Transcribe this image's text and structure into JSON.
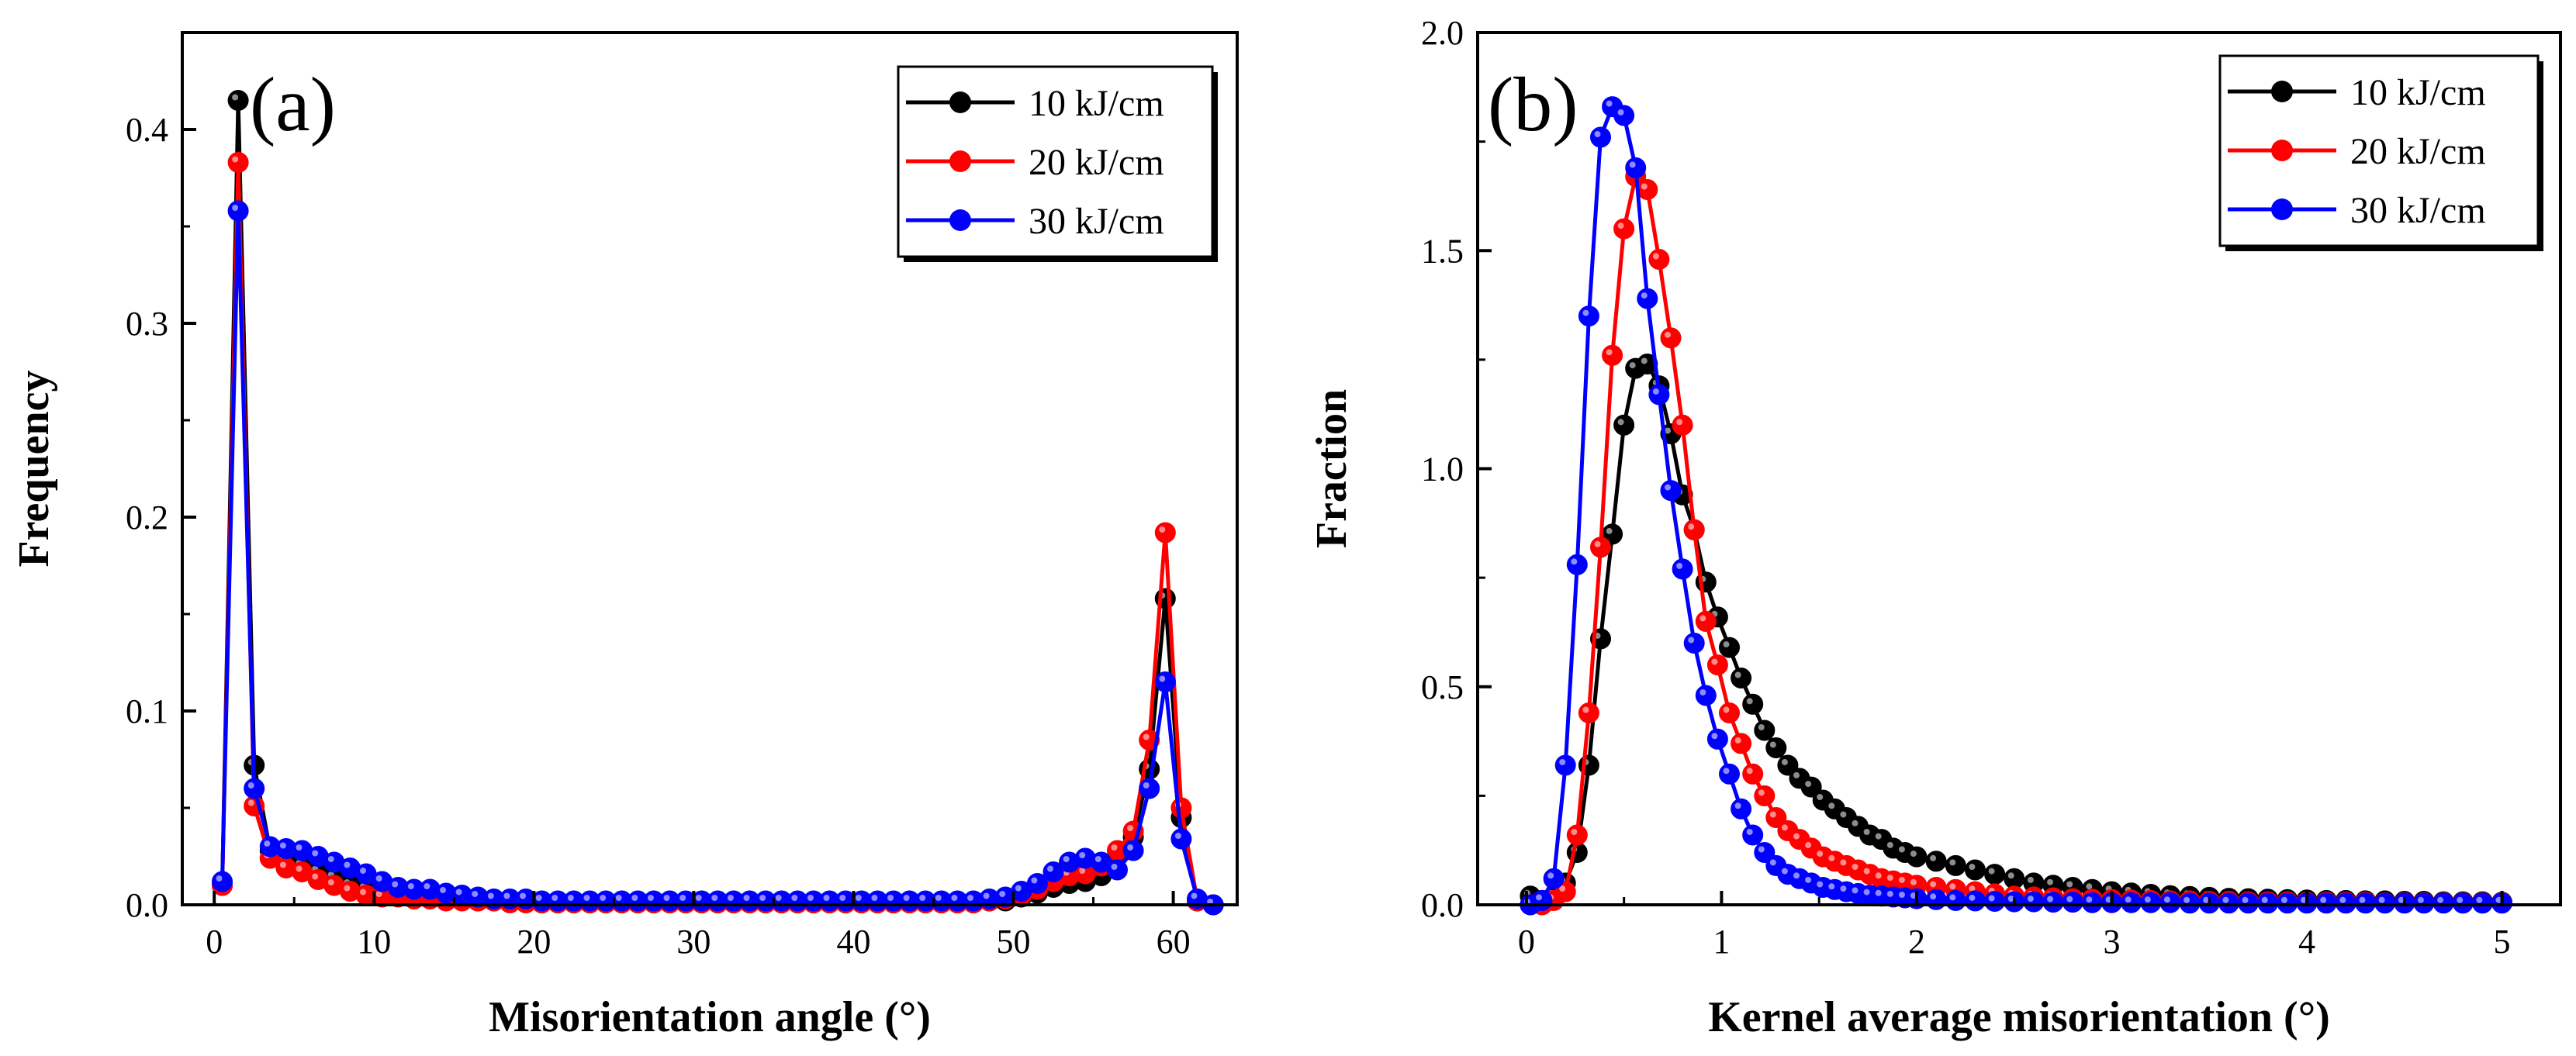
{
  "chart_data": [
    {
      "type": "line",
      "panel_label": "(a)",
      "xlabel": "Misorientation angle (°)",
      "ylabel": "Frequency",
      "xlim": [
        -2,
        64
      ],
      "ylim": [
        0,
        0.45
      ],
      "xticks": [
        0,
        10,
        20,
        30,
        40,
        50,
        60
      ],
      "yticks": [
        0.0,
        0.1,
        0.2,
        0.3,
        0.4
      ],
      "ytick_labels": [
        "0.0",
        "0.1",
        "0.2",
        "0.3",
        "0.4"
      ],
      "legend_position": "top-right",
      "series": [
        {
          "name": "10 kJ/cm",
          "color": "#000000",
          "x": [
            0.5,
            1.5,
            2.5,
            3.5,
            4.5,
            5.5,
            6.5,
            7.5,
            8.5,
            9.5,
            10.5,
            11.5,
            12.5,
            13.5,
            14.5,
            15.5,
            16.5,
            17.5,
            18.5,
            19.5,
            20.5,
            21.5,
            22.5,
            23.5,
            24.5,
            25.5,
            26.5,
            27.5,
            28.5,
            29.5,
            30.5,
            31.5,
            32.5,
            33.5,
            34.5,
            35.5,
            36.5,
            37.5,
            38.5,
            39.5,
            40.5,
            41.5,
            42.5,
            43.5,
            44.5,
            45.5,
            46.5,
            47.5,
            48.5,
            49.5,
            50.5,
            51.5,
            52.5,
            53.5,
            54.5,
            55.5,
            56.5,
            57.5,
            58.5,
            59.5,
            60.5,
            61.5,
            62.5
          ],
          "values": [
            0.01,
            0.415,
            0.072,
            0.028,
            0.022,
            0.02,
            0.017,
            0.014,
            0.01,
            0.008,
            0.006,
            0.005,
            0.005,
            0.004,
            0.003,
            0.003,
            0.002,
            0.002,
            0.002,
            0.002,
            0.001,
            0.001,
            0.001,
            0.001,
            0.001,
            0.001,
            0.001,
            0.001,
            0.001,
            0.001,
            0.001,
            0.001,
            0.001,
            0.001,
            0.001,
            0.001,
            0.001,
            0.001,
            0.001,
            0.001,
            0.001,
            0.001,
            0.001,
            0.001,
            0.001,
            0.001,
            0.001,
            0.001,
            0.002,
            0.002,
            0.004,
            0.006,
            0.009,
            0.011,
            0.012,
            0.015,
            0.025,
            0.035,
            0.07,
            0.158,
            0.045,
            0.002,
            0.0
          ]
        },
        {
          "name": "20 kJ/cm",
          "color": "#ff0000",
          "x": [
            0.5,
            1.5,
            2.5,
            3.5,
            4.5,
            5.5,
            6.5,
            7.5,
            8.5,
            9.5,
            10.5,
            11.5,
            12.5,
            13.5,
            14.5,
            15.5,
            16.5,
            17.5,
            18.5,
            19.5,
            20.5,
            21.5,
            22.5,
            23.5,
            24.5,
            25.5,
            26.5,
            27.5,
            28.5,
            29.5,
            30.5,
            31.5,
            32.5,
            33.5,
            34.5,
            35.5,
            36.5,
            37.5,
            38.5,
            39.5,
            40.5,
            41.5,
            42.5,
            43.5,
            44.5,
            45.5,
            46.5,
            47.5,
            48.5,
            49.5,
            50.5,
            51.5,
            52.5,
            53.5,
            54.5,
            55.5,
            56.5,
            57.5,
            58.5,
            59.5,
            60.5,
            61.5,
            62.5
          ],
          "values": [
            0.01,
            0.383,
            0.051,
            0.024,
            0.019,
            0.017,
            0.013,
            0.01,
            0.007,
            0.005,
            0.004,
            0.004,
            0.003,
            0.003,
            0.002,
            0.002,
            0.002,
            0.002,
            0.001,
            0.001,
            0.001,
            0.001,
            0.001,
            0.001,
            0.001,
            0.001,
            0.001,
            0.001,
            0.001,
            0.001,
            0.001,
            0.001,
            0.001,
            0.001,
            0.001,
            0.001,
            0.001,
            0.001,
            0.001,
            0.001,
            0.001,
            0.001,
            0.001,
            0.001,
            0.001,
            0.001,
            0.001,
            0.001,
            0.002,
            0.003,
            0.005,
            0.008,
            0.012,
            0.015,
            0.016,
            0.02,
            0.028,
            0.038,
            0.085,
            0.192,
            0.05,
            0.002,
            0.0
          ]
        },
        {
          "name": "30 kJ/cm",
          "color": "#0000ff",
          "x": [
            0.5,
            1.5,
            2.5,
            3.5,
            4.5,
            5.5,
            6.5,
            7.5,
            8.5,
            9.5,
            10.5,
            11.5,
            12.5,
            13.5,
            14.5,
            15.5,
            16.5,
            17.5,
            18.5,
            19.5,
            20.5,
            21.5,
            22.5,
            23.5,
            24.5,
            25.5,
            26.5,
            27.5,
            28.5,
            29.5,
            30.5,
            31.5,
            32.5,
            33.5,
            34.5,
            35.5,
            36.5,
            37.5,
            38.5,
            39.5,
            40.5,
            41.5,
            42.5,
            43.5,
            44.5,
            45.5,
            46.5,
            47.5,
            48.5,
            49.5,
            50.5,
            51.5,
            52.5,
            53.5,
            54.5,
            55.5,
            56.5,
            57.5,
            58.5,
            59.5,
            60.5,
            61.5,
            62.5
          ],
          "values": [
            0.012,
            0.358,
            0.06,
            0.03,
            0.029,
            0.028,
            0.025,
            0.022,
            0.019,
            0.016,
            0.012,
            0.009,
            0.008,
            0.008,
            0.006,
            0.005,
            0.004,
            0.003,
            0.003,
            0.003,
            0.002,
            0.002,
            0.002,
            0.002,
            0.002,
            0.002,
            0.002,
            0.002,
            0.002,
            0.002,
            0.002,
            0.002,
            0.002,
            0.002,
            0.002,
            0.002,
            0.002,
            0.002,
            0.002,
            0.002,
            0.002,
            0.002,
            0.002,
            0.002,
            0.002,
            0.002,
            0.002,
            0.002,
            0.003,
            0.004,
            0.007,
            0.011,
            0.017,
            0.022,
            0.024,
            0.022,
            0.018,
            0.028,
            0.06,
            0.115,
            0.034,
            0.003,
            0.0
          ]
        }
      ]
    },
    {
      "type": "line",
      "panel_label": "(b)",
      "xlabel": "Kernel average misorientation (°)",
      "ylabel": "Fraction",
      "xlim": [
        -0.25,
        5.3
      ],
      "ylim": [
        0,
        2.0
      ],
      "xticks": [
        0,
        1,
        2,
        3,
        4,
        5
      ],
      "yticks": [
        0.0,
        0.5,
        1.0,
        1.5,
        2.0
      ],
      "ytick_labels": [
        "0.0",
        "0.5",
        "1.0",
        "1.5",
        "2.0"
      ],
      "legend_position": "top-right",
      "series": [
        {
          "name": "10 kJ/cm",
          "color": "#000000",
          "x": [
            0.02,
            0.08,
            0.14,
            0.2,
            0.26,
            0.32,
            0.38,
            0.44,
            0.5,
            0.56,
            0.62,
            0.68,
            0.74,
            0.8,
            0.86,
            0.92,
            0.98,
            1.04,
            1.1,
            1.16,
            1.22,
            1.28,
            1.34,
            1.4,
            1.46,
            1.52,
            1.58,
            1.64,
            1.7,
            1.76,
            1.82,
            1.88,
            1.94,
            2.0,
            2.1,
            2.2,
            2.3,
            2.4,
            2.5,
            2.6,
            2.7,
            2.8,
            2.9,
            3.0,
            3.1,
            3.2,
            3.3,
            3.4,
            3.5,
            3.6,
            3.7,
            3.8,
            3.9,
            4.0,
            4.1,
            4.2,
            4.3,
            4.4,
            4.5,
            4.6,
            4.7,
            4.8,
            4.9,
            5.0
          ],
          "values": [
            0.02,
            0.01,
            0.02,
            0.05,
            0.12,
            0.32,
            0.61,
            0.85,
            1.1,
            1.23,
            1.24,
            1.19,
            1.08,
            0.94,
            0.86,
            0.74,
            0.66,
            0.59,
            0.52,
            0.46,
            0.4,
            0.36,
            0.32,
            0.29,
            0.27,
            0.24,
            0.22,
            0.2,
            0.18,
            0.16,
            0.15,
            0.13,
            0.12,
            0.11,
            0.1,
            0.09,
            0.08,
            0.07,
            0.06,
            0.05,
            0.045,
            0.04,
            0.035,
            0.03,
            0.027,
            0.024,
            0.021,
            0.019,
            0.017,
            0.015,
            0.014,
            0.013,
            0.012,
            0.011,
            0.01,
            0.01,
            0.009,
            0.009,
            0.008,
            0.008,
            0.007,
            0.007,
            0.007,
            0.006
          ]
        },
        {
          "name": "20 kJ/cm",
          "color": "#ff0000",
          "x": [
            0.02,
            0.08,
            0.14,
            0.2,
            0.26,
            0.32,
            0.38,
            0.44,
            0.5,
            0.56,
            0.62,
            0.68,
            0.74,
            0.8,
            0.86,
            0.92,
            0.98,
            1.04,
            1.1,
            1.16,
            1.22,
            1.28,
            1.34,
            1.4,
            1.46,
            1.52,
            1.58,
            1.64,
            1.7,
            1.76,
            1.82,
            1.88,
            1.94,
            2.0,
            2.1,
            2.2,
            2.3,
            2.4,
            2.5,
            2.6,
            2.7,
            2.8,
            2.9,
            3.0,
            3.1,
            3.2,
            3.3,
            3.4,
            3.5,
            3.6,
            3.7,
            3.8,
            3.9,
            4.0,
            4.1,
            4.2,
            4.3,
            4.4,
            4.5,
            4.6,
            4.7,
            4.8,
            4.9,
            5.0
          ],
          "values": [
            0.0,
            0.0,
            0.01,
            0.03,
            0.16,
            0.44,
            0.82,
            1.26,
            1.55,
            1.67,
            1.64,
            1.48,
            1.3,
            1.1,
            0.86,
            0.65,
            0.55,
            0.44,
            0.37,
            0.3,
            0.25,
            0.2,
            0.17,
            0.15,
            0.13,
            0.11,
            0.1,
            0.09,
            0.08,
            0.07,
            0.06,
            0.055,
            0.05,
            0.045,
            0.04,
            0.035,
            0.03,
            0.025,
            0.02,
            0.018,
            0.016,
            0.014,
            0.013,
            0.012,
            0.011,
            0.01,
            0.009,
            0.009,
            0.008,
            0.008,
            0.007,
            0.007,
            0.007,
            0.006,
            0.006,
            0.006,
            0.006,
            0.005,
            0.005,
            0.005,
            0.005,
            0.005,
            0.005,
            0.005
          ]
        },
        {
          "name": "30 kJ/cm",
          "color": "#0000ff",
          "x": [
            0.02,
            0.08,
            0.14,
            0.2,
            0.26,
            0.32,
            0.38,
            0.44,
            0.5,
            0.56,
            0.62,
            0.68,
            0.74,
            0.8,
            0.86,
            0.92,
            0.98,
            1.04,
            1.1,
            1.16,
            1.22,
            1.28,
            1.34,
            1.4,
            1.46,
            1.52,
            1.58,
            1.64,
            1.7,
            1.76,
            1.82,
            1.88,
            1.94,
            2.0,
            2.1,
            2.2,
            2.3,
            2.4,
            2.5,
            2.6,
            2.7,
            2.8,
            2.9,
            3.0,
            3.1,
            3.2,
            3.3,
            3.4,
            3.5,
            3.6,
            3.7,
            3.8,
            3.9,
            4.0,
            4.1,
            4.2,
            4.3,
            4.4,
            4.5,
            4.6,
            4.7,
            4.8,
            4.9,
            5.0
          ],
          "values": [
            0.0,
            0.01,
            0.06,
            0.32,
            0.78,
            1.35,
            1.76,
            1.83,
            1.81,
            1.69,
            1.39,
            1.17,
            0.95,
            0.77,
            0.6,
            0.48,
            0.38,
            0.3,
            0.22,
            0.16,
            0.12,
            0.09,
            0.07,
            0.06,
            0.05,
            0.04,
            0.035,
            0.03,
            0.026,
            0.022,
            0.02,
            0.018,
            0.016,
            0.014,
            0.012,
            0.01,
            0.009,
            0.008,
            0.007,
            0.007,
            0.006,
            0.006,
            0.005,
            0.005,
            0.005,
            0.005,
            0.005,
            0.004,
            0.004,
            0.004,
            0.004,
            0.004,
            0.004,
            0.004,
            0.004,
            0.004,
            0.004,
            0.004,
            0.004,
            0.004,
            0.004,
            0.004,
            0.004,
            0.004
          ]
        }
      ]
    }
  ]
}
